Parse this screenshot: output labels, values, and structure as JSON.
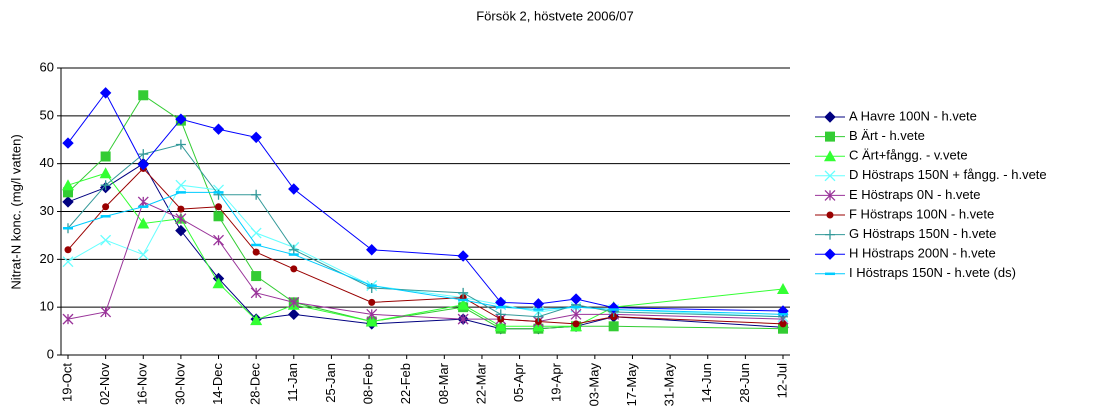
{
  "chart_data": {
    "type": "line",
    "title": "Försök 2, höstvete 2006/07",
    "y_label": "Nitrat-N konc. (mg/l vatten)",
    "x": [
      "19-Oct",
      "02-Nov",
      "16-Nov",
      "30-Nov",
      "14-Dec",
      "28-Dec",
      "11-Jan",
      "09-Feb",
      "15-Mar",
      "29-Mar",
      "12-Apr",
      "26-Apr",
      "10-May",
      "12-Jul"
    ],
    "xlim": [
      "19-Oct",
      "12-Jul"
    ],
    "xticks": [
      "19-Oct",
      "02-Nov",
      "16-Nov",
      "30-Nov",
      "14-Dec",
      "28-Dec",
      "11-Jan",
      "25-Jan",
      "08-Feb",
      "22-Feb",
      "08-Mar",
      "22-Mar",
      "05-Apr",
      "19-Apr",
      "03-May",
      "17-May",
      "31-May",
      "14-Jun",
      "28-Jun",
      "12-Jul"
    ],
    "ylim": [
      0,
      60
    ],
    "yticks": [
      0,
      10,
      20,
      30,
      40,
      50,
      60
    ],
    "grid": true,
    "legend": "right",
    "series": [
      {
        "name": "A Havre 100N - h.vete",
        "color": "#000080",
        "marker": "diamond",
        "values": [
          32,
          35,
          40,
          26,
          16,
          7.5,
          8.5,
          6.5,
          7.5,
          5.5,
          5.5,
          6,
          8,
          5.8
        ]
      },
      {
        "name": "B Ärt - h.vete",
        "color": "#33cc33",
        "marker": "square",
        "values": [
          34,
          41.5,
          54.3,
          49,
          29,
          16.5,
          11,
          7,
          10,
          5.5,
          5.5,
          6,
          6,
          5.5
        ]
      },
      {
        "name": "C Ärt+fångg. - v.vete",
        "color": "#33ff33",
        "marker": "triangle",
        "values": [
          35.5,
          38,
          27.5,
          28.5,
          15,
          7.3,
          10.5,
          7,
          10.5,
          6,
          6,
          6,
          10,
          13.8
        ]
      },
      {
        "name": "D Höstraps 150N + fångg. - h.vete",
        "color": "#66ffff",
        "marker": "x",
        "values": [
          19.5,
          24,
          21,
          35.5,
          34.5,
          25.5,
          22.5,
          14.5,
          12,
          10.5,
          9,
          10,
          9.5,
          8
        ]
      },
      {
        "name": "E Höstraps 0N - h.vete",
        "color": "#993399",
        "marker": "star",
        "values": [
          7.5,
          9,
          32,
          28.5,
          24,
          13,
          11,
          8.5,
          7.5,
          7.5,
          7,
          8.5,
          8.5,
          7.5
        ]
      },
      {
        "name": "F Höstraps 100N - h.vete",
        "color": "#990000",
        "marker": "circle",
        "values": [
          22,
          31,
          39,
          30.5,
          31,
          21.5,
          18,
          11,
          12,
          7.5,
          7,
          6.5,
          8,
          6.5
        ]
      },
      {
        "name": "G Höstraps 150N - h.vete",
        "color": "#339999",
        "marker": "plus",
        "values": [
          26.5,
          35.5,
          42,
          44,
          33.5,
          33.5,
          22,
          14,
          13,
          8.5,
          8,
          10.5,
          9,
          8
        ]
      },
      {
        "name": "H Höstraps 200N - h.vete",
        "color": "#0000ff",
        "marker": "diamond",
        "values": [
          44.3,
          54.8,
          39.8,
          49.3,
          47.2,
          45.5,
          34.7,
          22,
          20.7,
          11,
          10.7,
          11.7,
          9.9,
          9.2
        ]
      },
      {
        "name": "I Höstraps 150N - h.vete (ds)",
        "color": "#00ccff",
        "marker": "dash",
        "values": [
          26.5,
          29,
          31,
          34,
          34,
          23,
          21,
          14.5,
          11.5,
          10,
          9.5,
          10,
          9.5,
          8.5
        ]
      }
    ]
  }
}
